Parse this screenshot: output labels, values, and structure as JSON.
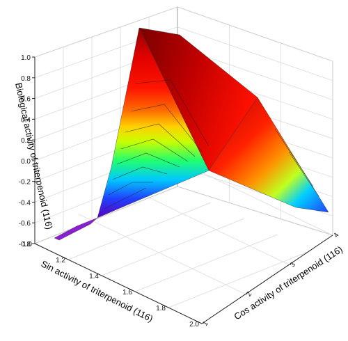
{
  "chart_data": {
    "type": "surface3d",
    "zlabel": "Biological activity of triterpenoid (116)",
    "xlabel": "Sin activity of triterpenoid (116)",
    "ylabel": "Cos activity of triterpenoid (116)",
    "z_ticks": [
      "-0.8",
      "-0.6",
      "-0.4",
      "-0.2",
      "0.0",
      "0.2",
      "0.4",
      "0.6",
      "0.8",
      "1.0"
    ],
    "x_ticks": [
      "1.0",
      "1.2",
      "1.4",
      "1.6",
      "1.8",
      "2.0"
    ],
    "y_ticks": [
      "1",
      "2",
      "3",
      "4"
    ],
    "xlim": [
      1.0,
      2.0
    ],
    "ylim": [
      1,
      4
    ],
    "zlim": [
      -0.8,
      1.0
    ],
    "colormap": [
      "#6a00c8",
      "#3060ff",
      "#00d0ff",
      "#20ff60",
      "#ffff00",
      "#ff8000",
      "#ff1000",
      "#b00000"
    ],
    "grid": true,
    "note": "surface vertices: [x, y, z]",
    "surface_points": [
      {
        "x": 1.0,
        "y": 1,
        "z": -0.75
      },
      {
        "x": 1.0,
        "y": 1,
        "z": -0.74
      },
      {
        "x": 1.4,
        "y": 1,
        "z": -0.55
      },
      {
        "x": 1.3,
        "y": 1,
        "z": 0.98
      },
      {
        "x": 1.55,
        "y": 1,
        "z": 0.9
      },
      {
        "x": 2.0,
        "y": 1,
        "z": 0.3
      },
      {
        "x": 2.0,
        "y": 4,
        "z": -0.45
      }
    ]
  }
}
